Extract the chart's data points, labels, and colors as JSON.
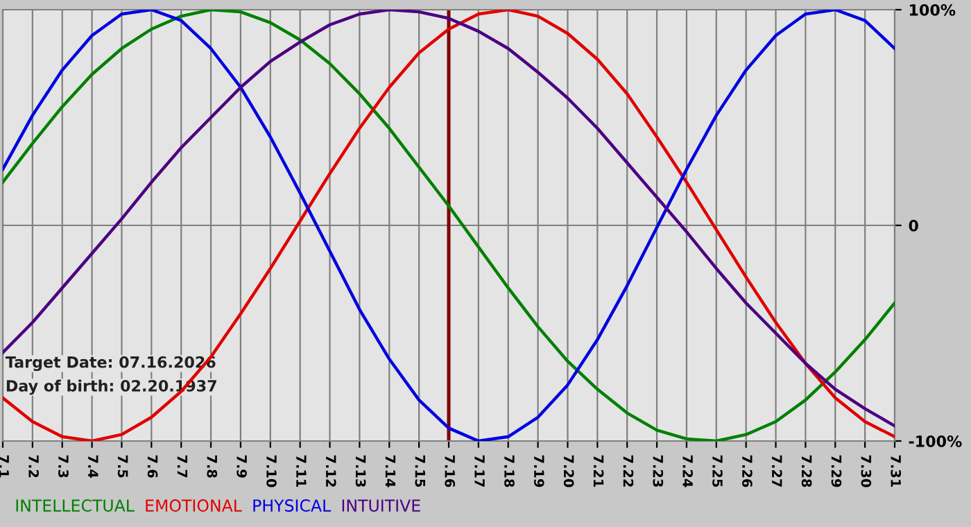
{
  "chart_data": {
    "type": "line",
    "categories": [
      "7.1",
      "7.2",
      "7.3",
      "7.4",
      "7.5",
      "7.6",
      "7.7",
      "7.8",
      "7.9",
      "7.10",
      "7.11",
      "7.12",
      "7.13",
      "7.14",
      "7.15",
      "7.16",
      "7.17",
      "7.18",
      "7.19",
      "7.20",
      "7.21",
      "7.22",
      "7.23",
      "7.24",
      "7.25",
      "7.26",
      "7.27",
      "7.28",
      "7.29",
      "7.30",
      "7.31"
    ],
    "series": [
      {
        "name": "INTELLECTUAL",
        "color": "#008000",
        "values": [
          20,
          38,
          55,
          70,
          82,
          91,
          97,
          100,
          99,
          94,
          86,
          75,
          61,
          45,
          27,
          9,
          -10,
          -29,
          -47,
          -63,
          -76,
          -87,
          -95,
          -99,
          -100,
          -97,
          -91,
          -81,
          -68,
          -53,
          -36
        ]
      },
      {
        "name": "EMOTIONAL",
        "color": "#e00000",
        "values": [
          -80,
          -91,
          -98,
          -100,
          -97,
          -89,
          -77,
          -61,
          -41,
          -20,
          2,
          24,
          45,
          64,
          80,
          91,
          98,
          100,
          97,
          89,
          77,
          61,
          41,
          20,
          -2,
          -24,
          -45,
          -64,
          -80,
          -91,
          -98
        ]
      },
      {
        "name": "PHYSICAL",
        "color": "#0000e0",
        "values": [
          26,
          51,
          72,
          88,
          98,
          100,
          95,
          82,
          64,
          41,
          15,
          -12,
          -39,
          -62,
          -81,
          -94,
          -100,
          -98,
          -89,
          -74,
          -53,
          -28,
          -1,
          26,
          51,
          72,
          88,
          98,
          100,
          95,
          82
        ]
      },
      {
        "name": "INTUITIVE",
        "color": "#4b0082",
        "values": [
          -59,
          -45,
          -29,
          -13,
          3,
          20,
          36,
          50,
          64,
          76,
          85,
          93,
          98,
          100,
          99,
          96,
          90,
          82,
          71,
          59,
          45,
          29,
          13,
          -3,
          -20,
          -36,
          -50,
          -64,
          -76,
          -85,
          -93
        ]
      }
    ],
    "ylim": [
      -100,
      100
    ],
    "yticks": [
      {
        "value": 100,
        "label": "100%"
      },
      0,
      {
        "value": -100,
        "label": "-100%"
      }
    ],
    "grid": true,
    "legend": "bottom",
    "ref_lines": [
      {
        "axis": "x",
        "value": "7.16",
        "color": "#800000"
      }
    ],
    "annotations": [
      "Target Date: 07.16.2026",
      "Day of birth: 02.20.1937"
    ]
  }
}
